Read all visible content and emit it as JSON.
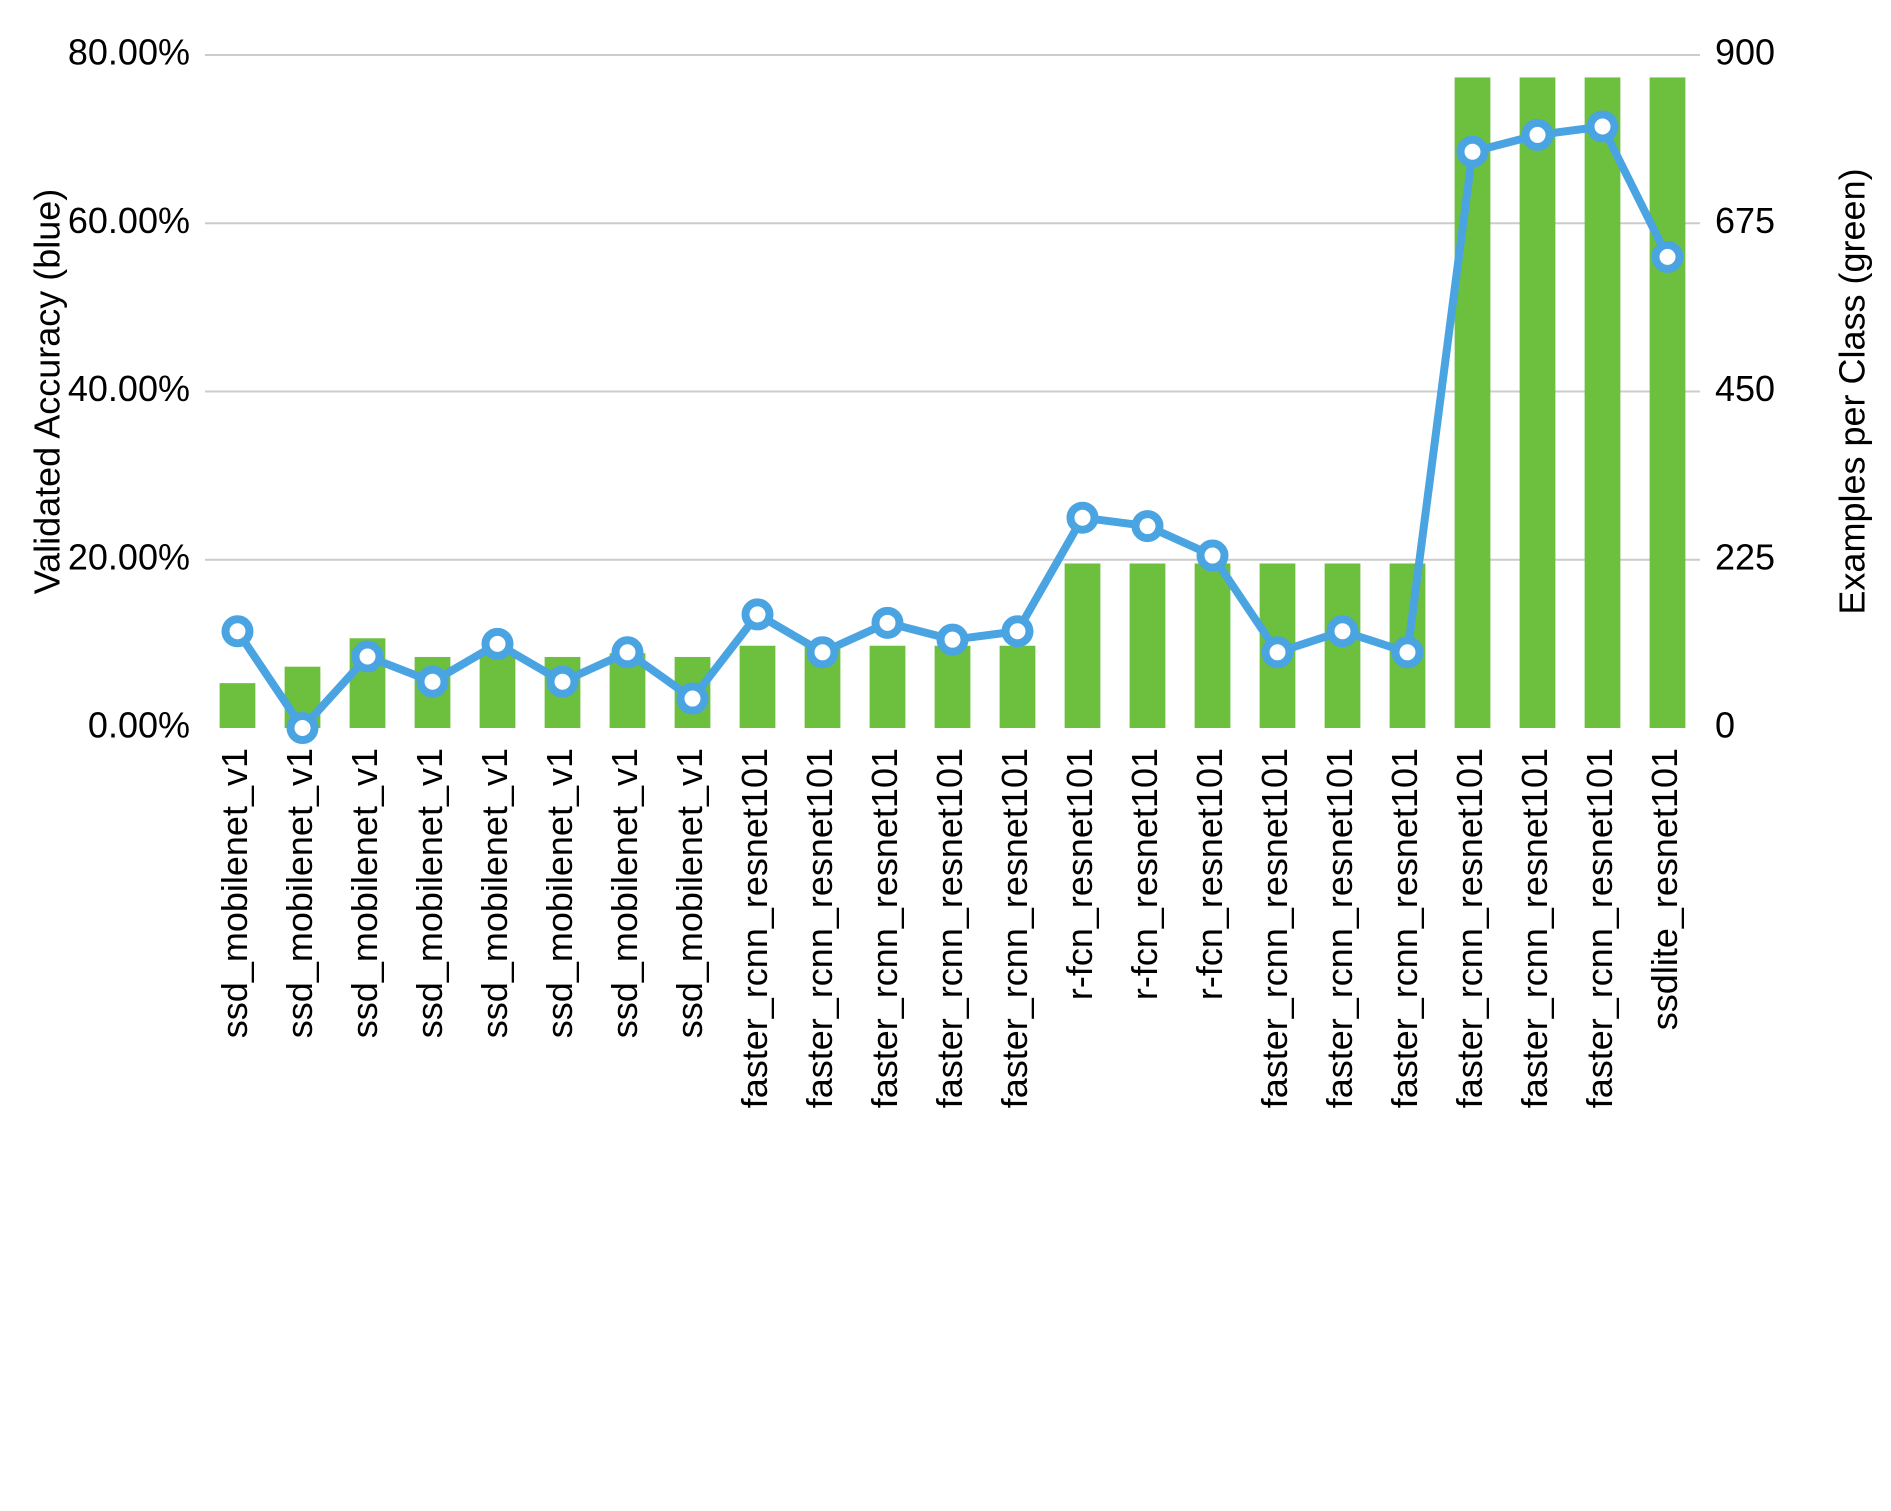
{
  "chart": {
    "type": "bar+line",
    "background_color": "#ffffff",
    "grid_color": "#cccccc",
    "bar_color": "#6dbf3e",
    "line_color": "#4aa4e2",
    "marker_fill": "#ffffff",
    "marker_stroke": "#4aa4e2",
    "line_width": 8,
    "marker_radius": 12,
    "marker_stroke_width": 8,
    "bar_width_ratio": 0.55,
    "left_axis": {
      "title": "Validated Accuracy (blue)",
      "min": 0,
      "max": 80,
      "step": 20,
      "tick_labels": [
        "0.00%",
        "20.00%",
        "40.00%",
        "60.00%",
        "80.00%"
      ],
      "tick_fontsize": 36,
      "title_fontsize": 36
    },
    "right_axis": {
      "title": "Examples per Class (green)",
      "min": 0,
      "max": 900,
      "step": 225,
      "tick_labels": [
        "0",
        "225",
        "450",
        "675",
        "900"
      ],
      "tick_fontsize": 36,
      "title_fontsize": 36
    },
    "categories": [
      "ssd_mobilenet_v1",
      "ssd_mobilenet_v1",
      "ssd_mobilenet_v1",
      "ssd_mobilenet_v1",
      "ssd_mobilenet_v1",
      "ssd_mobilenet_v1",
      "ssd_mobilenet_v1",
      "ssd_mobilenet_v1",
      "faster_rcnn_resnet101",
      "faster_rcnn_resnet101",
      "faster_rcnn_resnet101",
      "faster_rcnn_resnet101",
      "faster_rcnn_resnet101",
      "r-fcn_resnet101",
      "r-fcn_resnet101",
      "r-fcn_resnet101",
      "faster_rcnn_resnet101",
      "faster_rcnn_resnet101",
      "faster_rcnn_resnet101",
      "faster_rcnn_resnet101",
      "faster_rcnn_resnet101",
      "faster_rcnn_resnet101",
      "ssdlite_resnet101"
    ],
    "bar_values": [
      60,
      82,
      120,
      95,
      100,
      95,
      100,
      95,
      110,
      110,
      110,
      110,
      110,
      220,
      220,
      220,
      220,
      220,
      220,
      870,
      870,
      870,
      870
    ],
    "line_values": [
      11.5,
      0.0,
      8.5,
      5.5,
      10.0,
      5.5,
      9.0,
      3.5,
      13.5,
      9.0,
      12.5,
      10.5,
      11.5,
      25.0,
      24.0,
      20.5,
      9.0,
      11.5,
      9.0,
      68.5,
      70.5,
      71.5,
      56.0
    ],
    "category_fontsize": 36
  }
}
